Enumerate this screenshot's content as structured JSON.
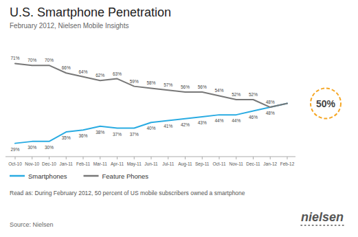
{
  "chart_data": {
    "type": "line",
    "title": "U.S. Smartphone Penetration",
    "subtitle": "February 2012, Nielsen Mobile Insights",
    "categories": [
      "Oct-10",
      "Nov-10",
      "Dec-10",
      "Jan-11",
      "Feb-11",
      "Mar-11",
      "Apr-11",
      "May-11",
      "Jun-11",
      "Jul-11",
      "Aug-11",
      "Sep-11",
      "Oct-11",
      "Nov-11",
      "Dec-11",
      "Jan-12",
      "Feb-12"
    ],
    "series": [
      {
        "name": "Smartphones",
        "color": "#29abe2",
        "values": [
          29,
          30,
          30,
          35,
          36,
          38,
          37,
          37,
          40,
          41,
          42,
          43,
          44,
          44,
          46,
          48,
          50
        ],
        "value_labels": [
          "29%",
          "30%",
          "30%",
          "35%",
          "36%",
          "38%",
          "37%",
          "37%",
          "40%",
          "41%",
          "42%",
          "43%",
          "44%",
          "44%",
          "46%",
          "48%",
          null
        ]
      },
      {
        "name": "Feature Phones",
        "color": "#777777",
        "values": [
          71,
          70,
          70,
          66,
          64,
          62,
          63,
          59,
          58,
          57,
          56,
          56,
          54,
          52,
          52,
          48,
          50
        ],
        "value_labels": [
          "71%",
          "70%",
          "70%",
          "66%",
          "64%",
          "62%",
          "63%",
          "59%",
          "58%",
          "57%",
          "56%",
          "56%",
          "54%",
          "52%",
          "52%",
          "48%",
          null
        ]
      }
    ],
    "ylim": [
      22,
      82
    ],
    "tick_labels": "x",
    "grid": false,
    "legend": "bottom",
    "data_labels": true,
    "annotations": [
      {
        "text": "50%",
        "color": "#f5a623"
      }
    ],
    "note": "Read as: During February 2012, 50 percent of US mobile subscribers owned a smartphone",
    "source": "Source: Nielsen",
    "logo": "nielsen"
  }
}
